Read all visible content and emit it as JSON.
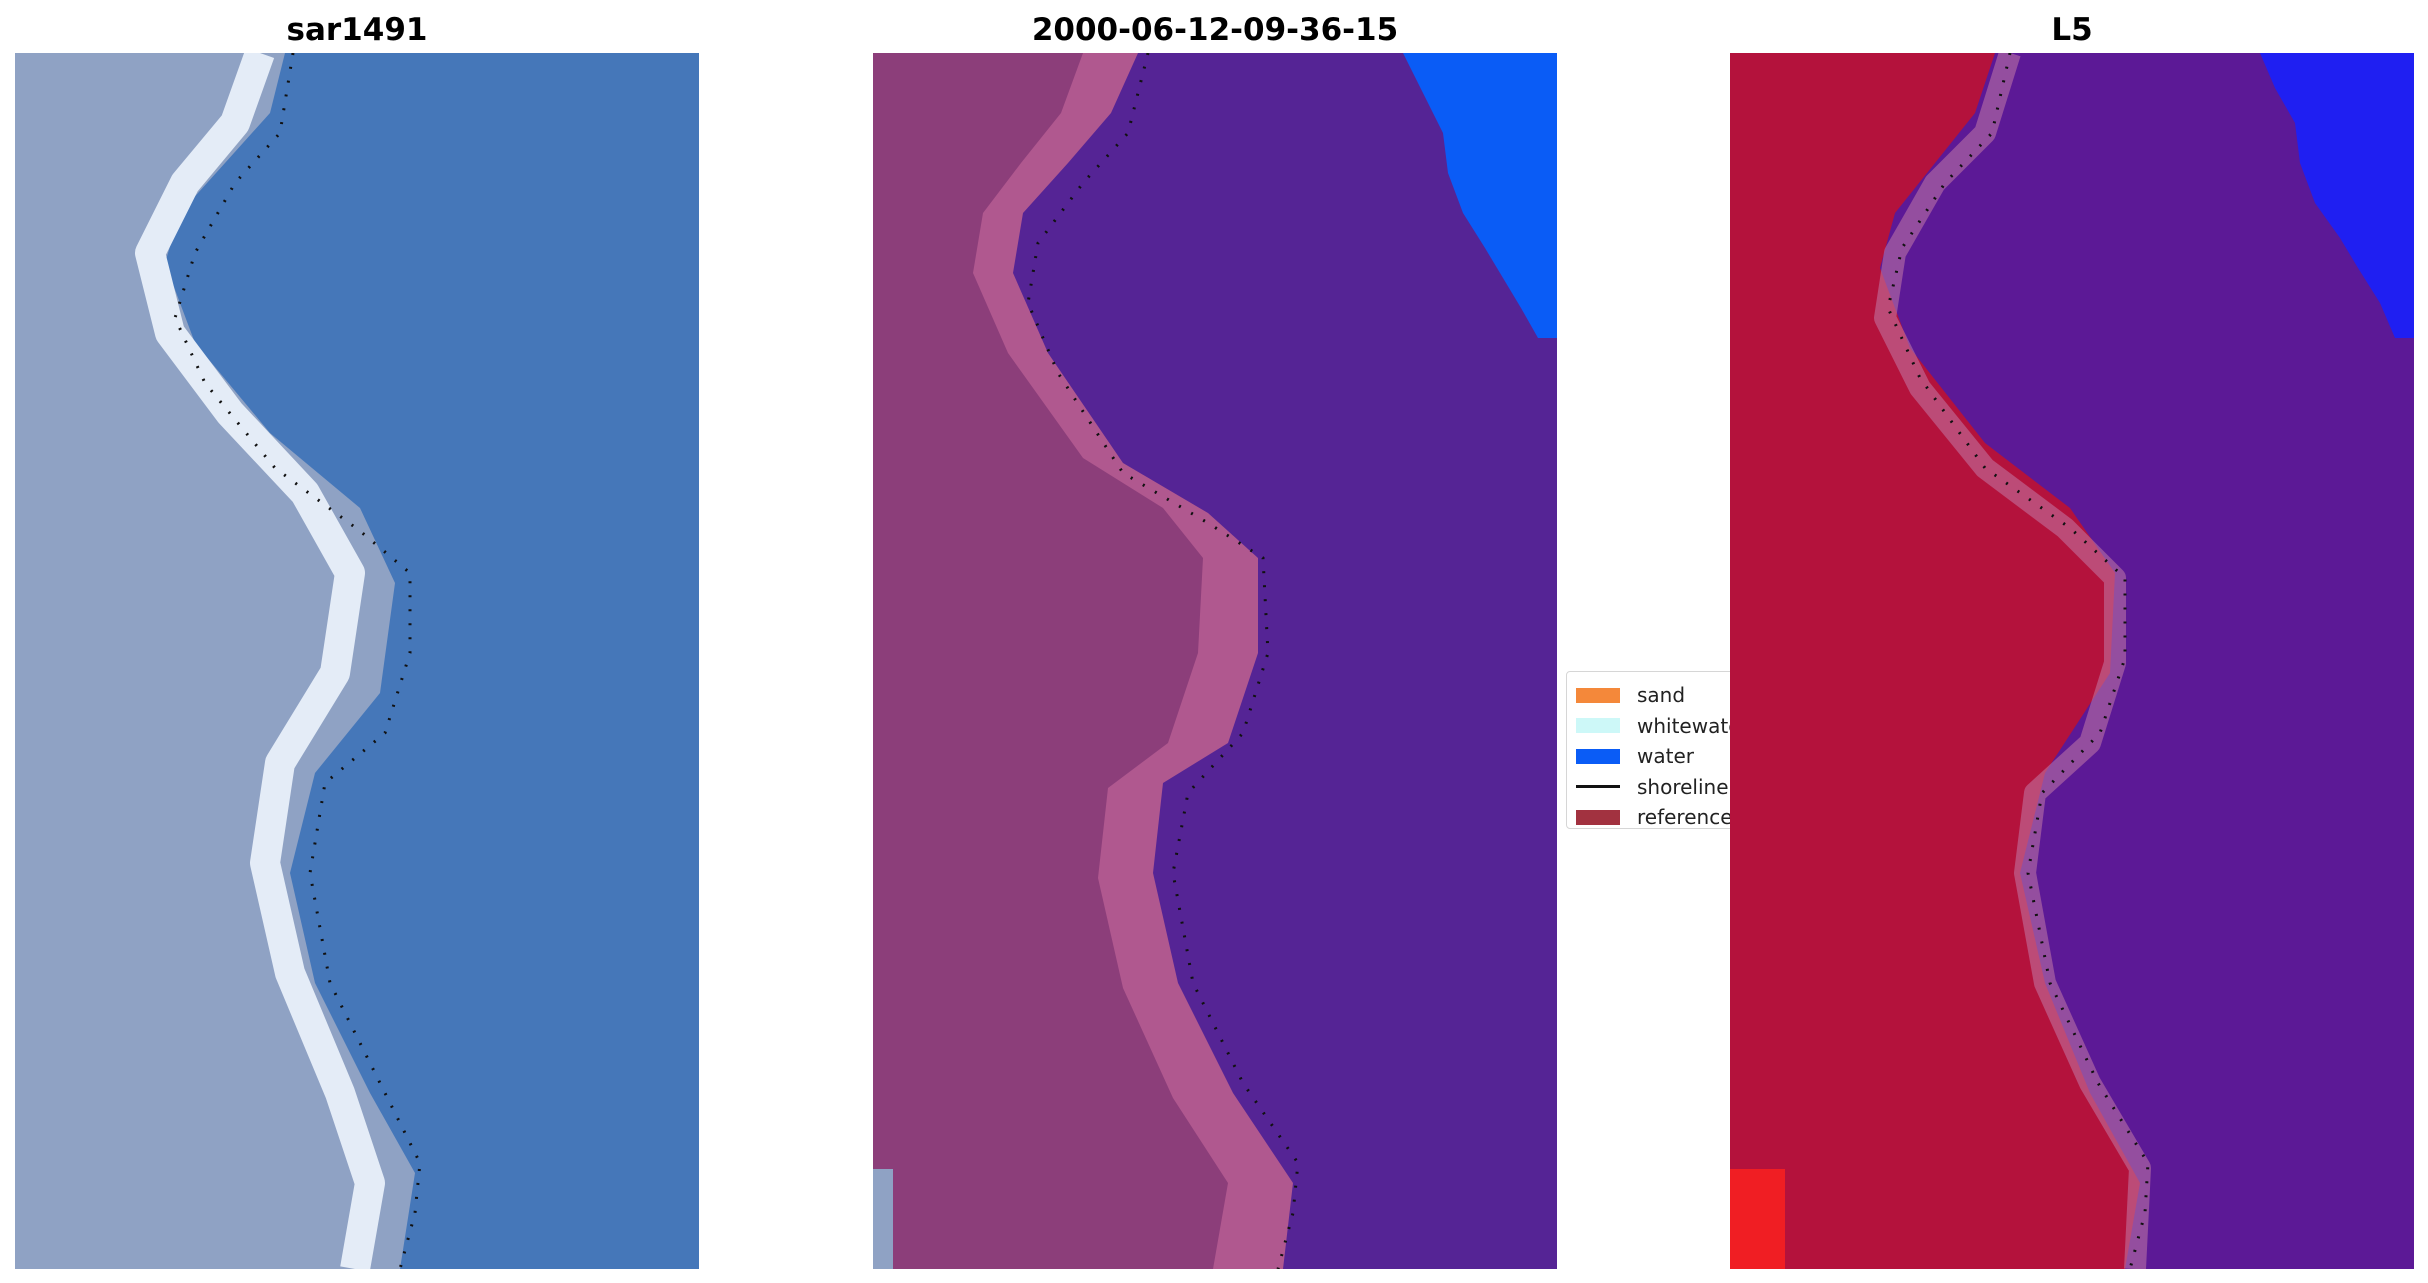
{
  "figure": {
    "panels": [
      {
        "title": "sar1491",
        "kind": "rgb-image"
      },
      {
        "title": "2000-06-12-09-36-15",
        "kind": "classified-image"
      },
      {
        "title": "L5",
        "kind": "mndwi-image"
      }
    ]
  },
  "legend": {
    "items": [
      {
        "label": "sand",
        "color": "#f4883a",
        "style": "patch"
      },
      {
        "label": "whitewater",
        "color": "#cdf8f8",
        "style": "patch"
      },
      {
        "label": "water",
        "color": "#0a5cf6",
        "style": "patch"
      },
      {
        "label": "shoreline",
        "color": "#111111",
        "style": "line"
      },
      {
        "label": "reference",
        "color": "#a23240",
        "style": "patch"
      }
    ]
  },
  "colors": {
    "rgb_water": "#4577b9",
    "rgb_land": "#8fa2c4",
    "rgb_wash": "#e4ecf7",
    "class_land": "#8c3e7a",
    "class_beach": "#b0588f",
    "class_water": "#552495",
    "class_deepwater": "#0a5cf6",
    "ndwi_land": "#b4123c",
    "ndwi_water": "#5c1996",
    "ndwi_blue": "#1f1ff2",
    "ndwi_corner": "#f01e23"
  }
}
